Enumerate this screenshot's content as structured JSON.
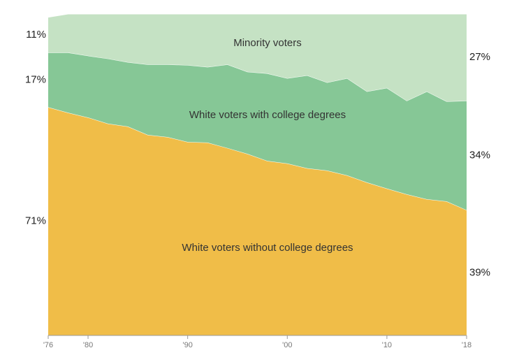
{
  "chart_data": {
    "type": "stacked_area_percent",
    "x": [
      1976,
      1978,
      1980,
      1982,
      1984,
      1986,
      1988,
      1990,
      1992,
      1994,
      1996,
      1998,
      2000,
      2002,
      2004,
      2006,
      2008,
      2010,
      2012,
      2014,
      2016,
      2018
    ],
    "xlim": [
      1976,
      2018
    ],
    "xticks": [
      {
        "value": 1976,
        "label": "'76"
      },
      {
        "value": 1980,
        "label": "'80"
      },
      {
        "value": 1990,
        "label": "'90"
      },
      {
        "value": 2000,
        "label": "'00"
      },
      {
        "value": 2010,
        "label": "'10"
      },
      {
        "value": 2018,
        "label": "'18"
      }
    ],
    "ylim": [
      0,
      100
    ],
    "series": [
      {
        "name": "White voters without college degrees",
        "color": "#f0bd48",
        "values": [
          71,
          69.3,
          67.8,
          65.9,
          65,
          62.4,
          61.7,
          60.2,
          60,
          58.3,
          56.5,
          54.3,
          53.5,
          52,
          51.3,
          49.8,
          47.6,
          45.7,
          43.9,
          42.4,
          41.7,
          39
        ],
        "value_labels": [
          "71%",
          null,
          null,
          null,
          null,
          null,
          null,
          null,
          null,
          null,
          null,
          null,
          null,
          null,
          null,
          null,
          null,
          null,
          null,
          null,
          null,
          "39%"
        ]
      },
      {
        "name": "White voters with college degrees",
        "color": "#86c796",
        "values": [
          17,
          18.7,
          19.2,
          20.2,
          20,
          21.9,
          22.6,
          23.9,
          23.5,
          26,
          25.5,
          27.2,
          26.5,
          28.9,
          27.4,
          30.2,
          28.3,
          31.3,
          29.1,
          33.5,
          31.1,
          34
        ],
        "value_labels": [
          "17%",
          null,
          null,
          null,
          null,
          null,
          null,
          null,
          null,
          null,
          null,
          null,
          null,
          null,
          null,
          null,
          null,
          null,
          null,
          null,
          null,
          "34%"
        ]
      },
      {
        "name": "Minority voters",
        "color": "#c5e2c4",
        "values": [
          11,
          12,
          13,
          13.9,
          15,
          15.7,
          15.7,
          15.9,
          16.5,
          15.7,
          18,
          18.5,
          20,
          19.1,
          21.3,
          20,
          24.1,
          23,
          27,
          24.1,
          27.2,
          27
        ],
        "value_labels": [
          "11%",
          null,
          null,
          null,
          null,
          null,
          null,
          null,
          null,
          null,
          null,
          null,
          null,
          null,
          null,
          null,
          null,
          null,
          null,
          null,
          null,
          "27%"
        ]
      }
    ]
  }
}
